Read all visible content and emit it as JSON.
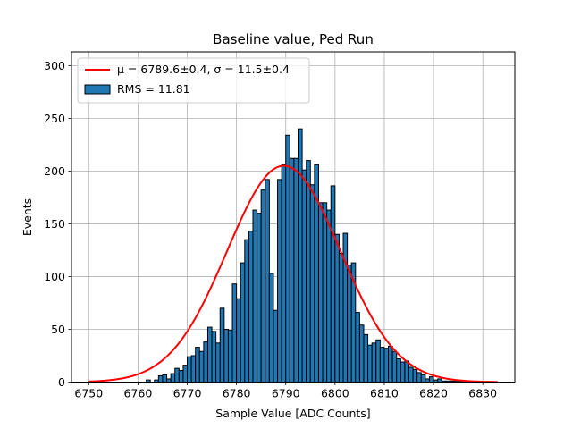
{
  "chart_data": {
    "type": "bar",
    "title": "Baseline value, Ped Run",
    "xlabel": "Sample Value [ADC Counts]",
    "ylabel": "Events",
    "xlim": [
      6746.5,
      6836.5
    ],
    "ylim": [
      0,
      313
    ],
    "xticks": [
      6750,
      6760,
      6770,
      6780,
      6790,
      6800,
      6810,
      6820,
      6830
    ],
    "yticks": [
      0,
      50,
      100,
      150,
      200,
      250,
      300
    ],
    "grid": true,
    "legend_position": "top-left",
    "colors": {
      "bar_fill": "#1f77b4",
      "bar_edge": "#000000",
      "fit_line": "#ff0000",
      "grid": "#b0b0b0"
    },
    "histogram": {
      "name": "RMS = 11.81",
      "bin_start": 6750,
      "bin_width": 0.8333,
      "counts": [
        0,
        0,
        0,
        0,
        0,
        0,
        0,
        0,
        0,
        0,
        0,
        0,
        0,
        0,
        2,
        0,
        2,
        6,
        7,
        3,
        8,
        13,
        11,
        16,
        24,
        25,
        33,
        29,
        38,
        52,
        48,
        37,
        70,
        50,
        49,
        93,
        79,
        113,
        135,
        143,
        163,
        160,
        182,
        192,
        103,
        68,
        192,
        206,
        234,
        212,
        212,
        240,
        201,
        210,
        187,
        206,
        170,
        170,
        163,
        186,
        140,
        122,
        141,
        111,
        113,
        66,
        54,
        45,
        35,
        37,
        40,
        33,
        32,
        34,
        29,
        22,
        19,
        20,
        14,
        12,
        9,
        7,
        3,
        5,
        2,
        3,
        1,
        1,
        1,
        1,
        1,
        1
      ]
    },
    "fit": {
      "name": "μ = 6789.6±0.4, σ = 11.5±0.4",
      "mu": 6789.6,
      "sigma": 11.5,
      "amplitude": 205,
      "x_range": [
        6750,
        6833
      ]
    }
  }
}
